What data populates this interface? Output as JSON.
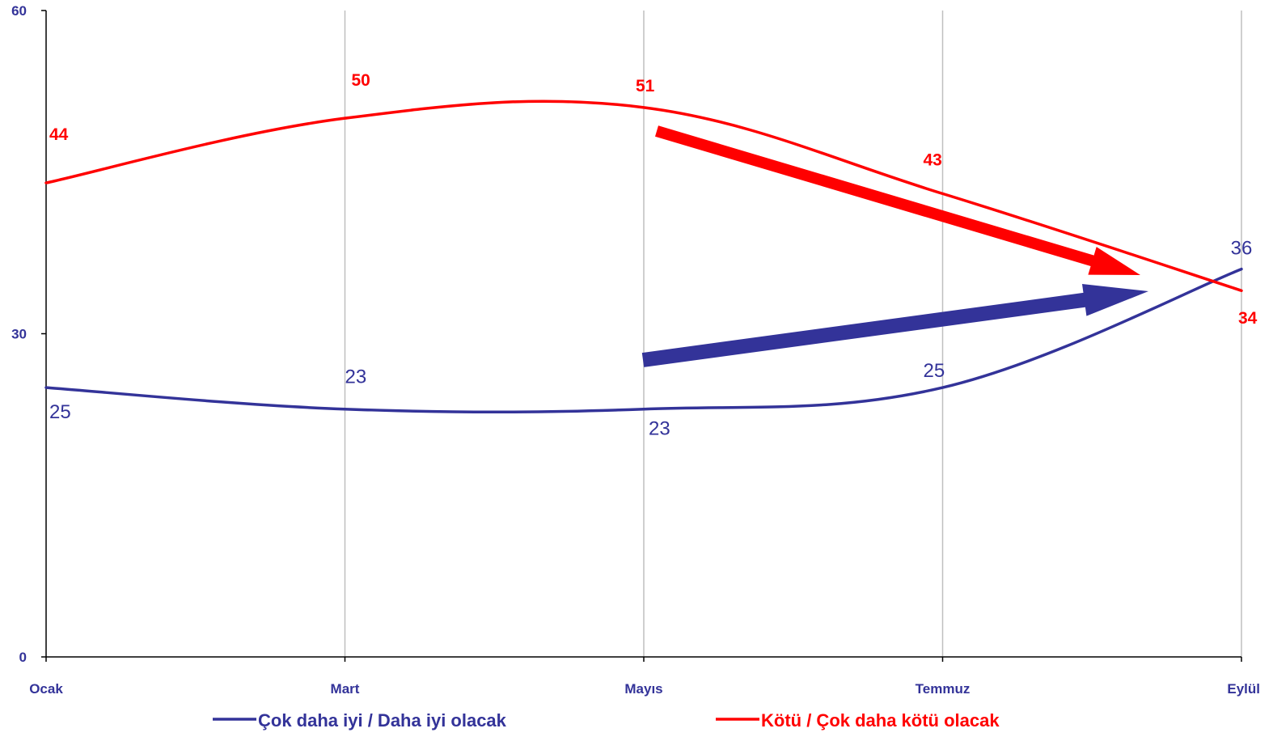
{
  "chart_data": {
    "type": "line",
    "categories": [
      "Ocak",
      "Mart",
      "Mayıs",
      "Temmuz",
      "Eylül"
    ],
    "ylim": [
      0,
      60
    ],
    "yticks": [
      0,
      30,
      60
    ],
    "grid": "vertical",
    "legend_position": "bottom",
    "series": [
      {
        "name": "Çok daha iyi / Daha iyi olacak",
        "color": "#333399",
        "values": [
          25,
          23,
          23,
          25,
          36
        ],
        "labels": [
          "25",
          "23",
          "23",
          "25",
          "36"
        ]
      },
      {
        "name": "Kötü / Çok daha kötü olacak",
        "color": "#ff0000",
        "values": [
          44,
          50,
          51,
          43,
          34
        ],
        "labels": [
          "44",
          "50",
          "51",
          "43",
          "34"
        ]
      }
    ],
    "annotations": [
      {
        "type": "arrow",
        "color": "#333399",
        "direction": "up-right"
      },
      {
        "type": "arrow",
        "color": "#ff0000",
        "direction": "down-right"
      }
    ],
    "axis_color": "#333399",
    "grid_color": "#bfbfbf"
  }
}
